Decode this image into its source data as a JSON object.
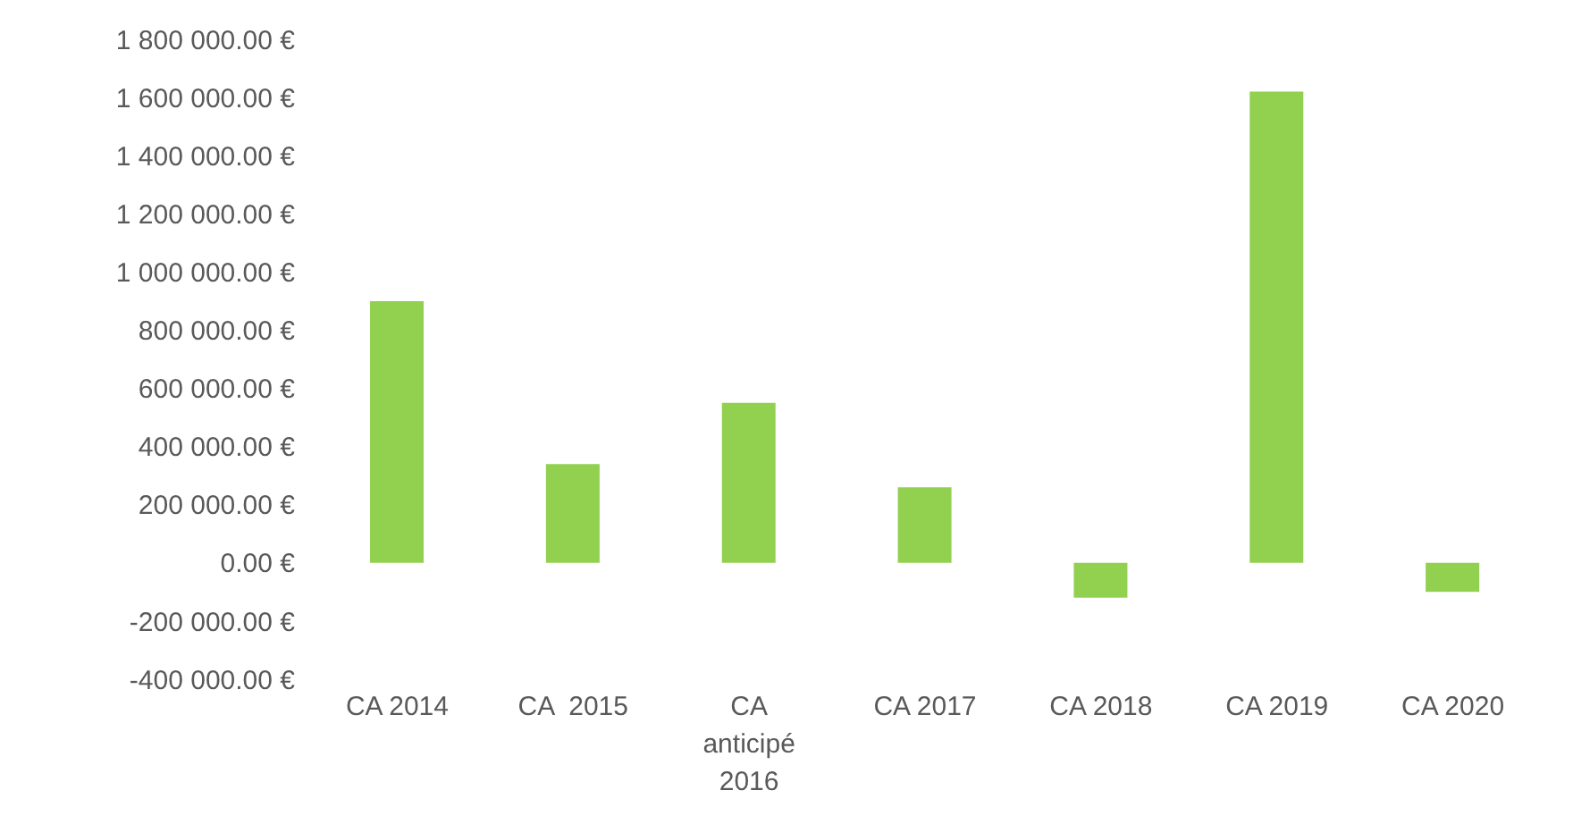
{
  "chart_data": {
    "type": "bar",
    "categories": [
      "CA 2014",
      "CA  2015",
      "CA anticipé 2016",
      "CA 2017",
      "CA 2018",
      "CA 2019",
      "CA 2020"
    ],
    "values": [
      900000,
      340000,
      550000,
      260000,
      -120000,
      1620000,
      -100000
    ],
    "color": "#92d050",
    "ylim": [
      -400000,
      1800000
    ],
    "yticks": [
      {
        "value": -400000,
        "label": "-400 000.00 €"
      },
      {
        "value": -200000,
        "label": "-200 000.00 €"
      },
      {
        "value": 0,
        "label": "0.00 €"
      },
      {
        "value": 200000,
        "label": "200 000.00 €"
      },
      {
        "value": 400000,
        "label": "400 000.00 €"
      },
      {
        "value": 600000,
        "label": "600 000.00 €"
      },
      {
        "value": 800000,
        "label": "800 000.00 €"
      },
      {
        "value": 1000000,
        "label": "1 000 000.00 €"
      },
      {
        "value": 1200000,
        "label": "1 200 000.00 €"
      },
      {
        "value": 1400000,
        "label": "1 400 000.00 €"
      },
      {
        "value": 1600000,
        "label": "1 600 000.00 €"
      },
      {
        "value": 1800000,
        "label": "1 800 000.00 €"
      }
    ],
    "grid": false,
    "legend": false
  }
}
